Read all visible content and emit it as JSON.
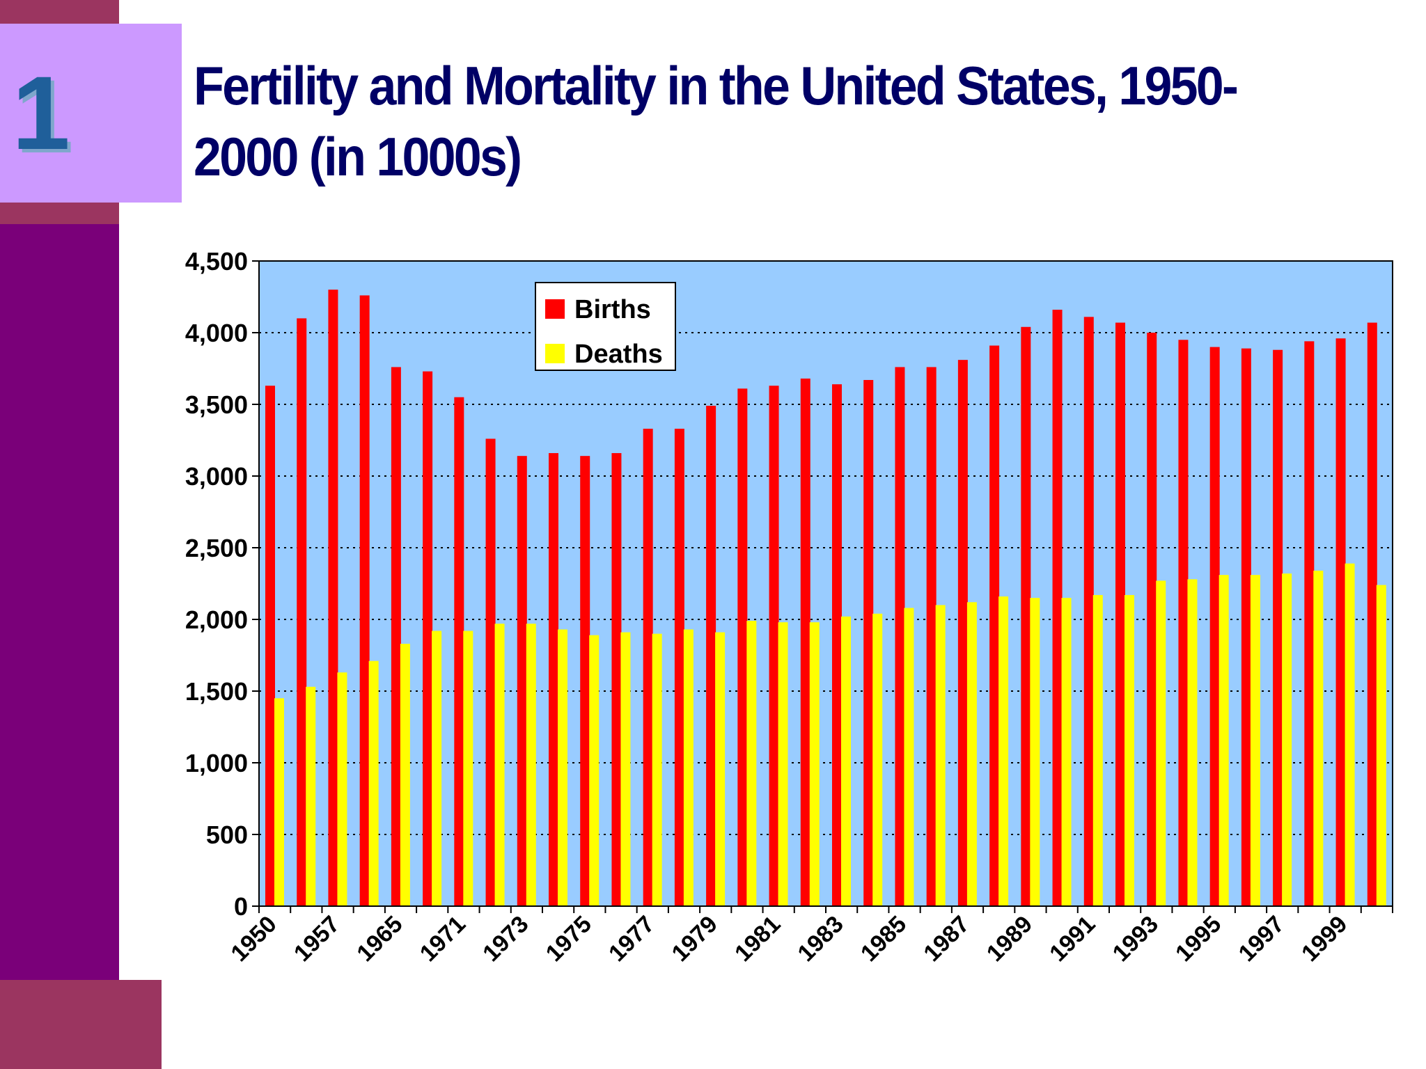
{
  "slide": {
    "number": "1",
    "title": "Fertility and Mortality in the United States, 1950-2000 (in 1000s)"
  },
  "colors": {
    "births": "#ff0000",
    "deaths": "#ffff00",
    "plot_background": "#99ccff",
    "title": "#000066",
    "sidebar": "#7a0079",
    "accent": "#9b3560",
    "number_box": "#cc99ff"
  },
  "chart_data": {
    "type": "bar",
    "title": "Fertility and Mortality in the United States, 1950-2000 (in 1000s)",
    "xlabel": "",
    "ylabel": "",
    "ylim": [
      0,
      4500
    ],
    "y_ticks": [
      0,
      500,
      1000,
      1500,
      2000,
      2500,
      3000,
      3500,
      4000,
      4500
    ],
    "y_tick_labels": [
      "0",
      "500",
      "1,000",
      "1,500",
      "2,000",
      "2,500",
      "3,000",
      "3,500",
      "4,000",
      "4,500"
    ],
    "x_tick_labels": [
      "1950",
      "1957",
      "1965",
      "1971",
      "1973",
      "1975",
      "1977",
      "1979",
      "1981",
      "1983",
      "1985",
      "1987",
      "1989",
      "1991",
      "1993",
      "1995",
      "1997",
      "1999"
    ],
    "grid": true,
    "legend_position": "top-center",
    "series": [
      {
        "name": "Births",
        "values": [
          3630,
          4100,
          4300,
          4260,
          3760,
          3730,
          3550,
          3260,
          3140,
          3160,
          3140,
          3160,
          3330,
          3330,
          3490,
          3610,
          3630,
          3680,
          3640,
          3670,
          3760,
          3760,
          3810,
          3910,
          4040,
          4160,
          4110,
          4070,
          4000,
          3950,
          3900,
          3890,
          3880,
          3940,
          3960,
          4070
        ]
      },
      {
        "name": "Deaths",
        "values": [
          1450,
          1530,
          1630,
          1710,
          1830,
          1920,
          1920,
          1970,
          1970,
          1930,
          1890,
          1910,
          1900,
          1930,
          1910,
          1990,
          1980,
          1980,
          2020,
          2040,
          2080,
          2100,
          2120,
          2160,
          2150,
          2150,
          2170,
          2170,
          2270,
          2280,
          2310,
          2310,
          2320,
          2340,
          2390,
          2240
        ]
      }
    ]
  }
}
